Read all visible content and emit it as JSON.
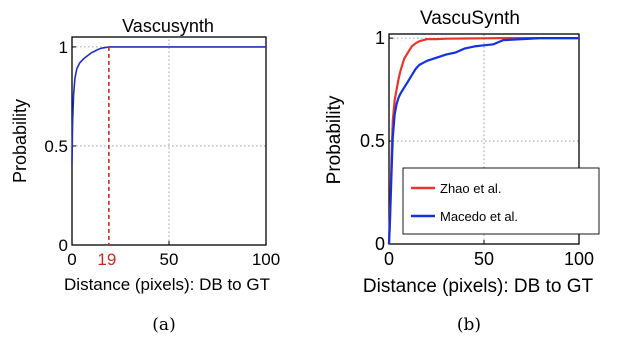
{
  "chart_data": [
    {
      "type": "line",
      "panel_label": "(a)",
      "title": "Vascusynth",
      "xlabel": "Distance (pixels): DB to GT",
      "ylabel": "Probability",
      "xlim": [
        0,
        100
      ],
      "ylim": [
        0,
        1.05
      ],
      "xticks": [
        "0",
        "50",
        "100"
      ],
      "yticks": [
        "0",
        "0.5",
        "1"
      ],
      "grid": true,
      "annotation": {
        "label": "19",
        "x": 19,
        "y": 1.0,
        "color": "#cc2a1e"
      },
      "series": [
        {
          "color": "#1f2fbf",
          "x": [
            0,
            0.3,
            0.8,
            1.5,
            2.5,
            4,
            6,
            8,
            10,
            12,
            14,
            16,
            18,
            19,
            30,
            60,
            100
          ],
          "y": [
            0.41,
            0.62,
            0.76,
            0.84,
            0.89,
            0.92,
            0.94,
            0.955,
            0.97,
            0.98,
            0.99,
            0.995,
            0.998,
            1.0,
            1.0,
            1.0,
            1.0
          ]
        }
      ]
    },
    {
      "type": "line",
      "panel_label": "(b)",
      "title": "VascuSynth",
      "xlabel": "Distance (pixels): DB to GT",
      "ylabel": "Probability",
      "xlim": [
        0,
        100
      ],
      "ylim": [
        0,
        1.02
      ],
      "xticks": [
        "0",
        "50",
        "100"
      ],
      "yticks": [
        "0",
        "0.5",
        "1"
      ],
      "grid": true,
      "legend_position": "bottom-left",
      "series": [
        {
          "name": "Zhao et al.",
          "color": "#e8362c",
          "x": [
            0,
            0.5,
            1,
            1.5,
            2,
            3,
            4,
            5,
            6,
            7,
            8,
            10,
            12,
            14,
            16,
            18,
            20,
            25,
            30,
            40,
            50,
            60,
            80,
            100
          ],
          "y": [
            0,
            0.12,
            0.3,
            0.48,
            0.6,
            0.7,
            0.75,
            0.8,
            0.84,
            0.87,
            0.9,
            0.93,
            0.96,
            0.975,
            0.985,
            0.99,
            0.995,
            0.995,
            0.997,
            0.998,
            0.999,
            1.0,
            1.0,
            1.0
          ]
        },
        {
          "name": "Macedo et al.",
          "color": "#1232e0",
          "x": [
            0,
            0.5,
            1,
            1.5,
            2,
            3,
            4,
            5,
            6,
            8,
            10,
            12,
            14,
            16,
            18,
            20,
            25,
            30,
            35,
            40,
            45,
            50,
            55,
            60,
            70,
            80,
            100
          ],
          "y": [
            0,
            0.1,
            0.25,
            0.4,
            0.52,
            0.63,
            0.68,
            0.71,
            0.73,
            0.76,
            0.79,
            0.82,
            0.85,
            0.87,
            0.88,
            0.89,
            0.905,
            0.92,
            0.93,
            0.95,
            0.96,
            0.965,
            0.97,
            0.99,
            0.995,
            1.0,
            1.0
          ]
        }
      ]
    }
  ]
}
